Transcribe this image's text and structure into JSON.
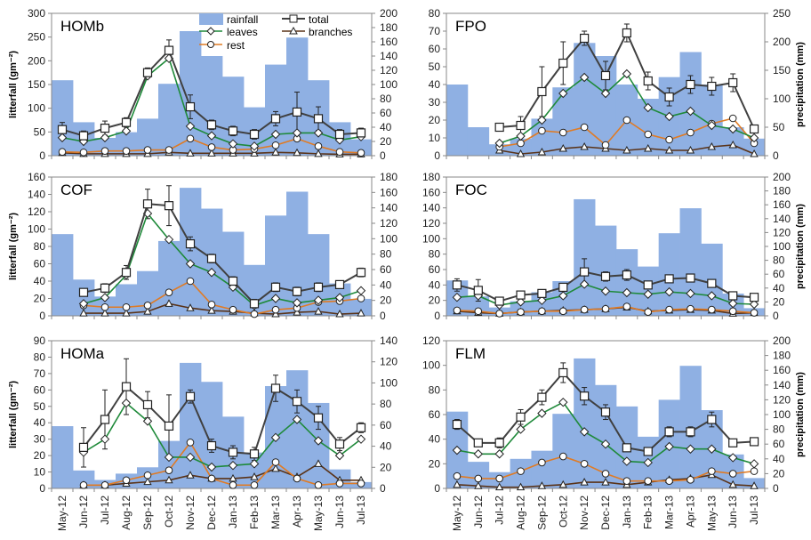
{
  "months": [
    "May-12",
    "Jun-12",
    "Jul-12",
    "Aug-12",
    "Sep-12",
    "Oct-12",
    "Nov-12",
    "Dec-12",
    "Jan-13",
    "Feb-13",
    "Mar-13",
    "Apr-13",
    "May-13",
    "Jun-13",
    "Jul-13"
  ],
  "labels": {
    "left_axis": "litterfall (gm⁻²)",
    "right_axis": "precipitation (mm)"
  },
  "legend": {
    "rainfall": "rainfall",
    "total": "total",
    "leaves": "leaves",
    "branches": "branches",
    "rest": "rest"
  },
  "colors": {
    "rainfall": "#8fb0e3",
    "total": "#404040",
    "leaves": "#1f8a3a",
    "rest": "#e07b24",
    "branches": "#5a3318"
  },
  "chart_data": [
    {
      "type": "bar+line",
      "title": "HOMb",
      "ylim": [
        0,
        300
      ],
      "yticks": [
        0,
        50,
        100,
        150,
        200,
        250,
        300
      ],
      "y2lim": [
        0,
        200
      ],
      "y2ticks": [
        0,
        20,
        40,
        60,
        80,
        100,
        120,
        140,
        160,
        180,
        200
      ],
      "show_ylabel": true,
      "show_y2label": false,
      "show_xlabels": false,
      "legend": true,
      "rainfall": [
        106,
        47,
        25,
        33,
        52,
        101,
        175,
        140,
        111,
        68,
        128,
        166,
        106,
        47,
        23
      ],
      "total": [
        55,
        42,
        58,
        70,
        175,
        222,
        103,
        65,
        52,
        45,
        78,
        92,
        78,
        45,
        48
      ],
      "total_err": [
        15,
        10,
        15,
        10,
        10,
        22,
        25,
        10,
        10,
        10,
        15,
        42,
        25,
        10,
        10
      ],
      "leaves": [
        38,
        30,
        38,
        52,
        168,
        205,
        62,
        42,
        25,
        20,
        45,
        48,
        48,
        33,
        40
      ],
      "rest": [
        8,
        7,
        10,
        10,
        12,
        12,
        36,
        18,
        12,
        14,
        22,
        36,
        20,
        8,
        6
      ],
      "branches": [
        6,
        4,
        4,
        4,
        4,
        7,
        5,
        5,
        5,
        5,
        7,
        6,
        4,
        3,
        3
      ]
    },
    {
      "type": "bar+line",
      "title": "FPO",
      "ylim": [
        0,
        80
      ],
      "yticks": [
        0,
        10,
        20,
        30,
        40,
        50,
        60,
        70,
        80
      ],
      "y2lim": [
        0,
        250
      ],
      "y2ticks": [
        0,
        50,
        100,
        150,
        200,
        250
      ],
      "show_ylabel": false,
      "show_y2label": true,
      "show_xlabels": false,
      "legend": false,
      "rainfall": [
        125,
        50,
        20,
        30,
        65,
        120,
        198,
        175,
        125,
        100,
        138,
        182,
        125,
        50,
        30
      ],
      "total": [
        16,
        17,
        36,
        52,
        66,
        45,
        69,
        42,
        33,
        40,
        39,
        41,
        15
      ],
      "total_err": [
        2,
        5,
        14,
        12,
        4,
        8,
        5,
        5,
        5,
        5,
        5,
        5,
        2
      ],
      "leaves": [
        7,
        11,
        20,
        35,
        44,
        35,
        46,
        27,
        22,
        25,
        17,
        15,
        10
      ],
      "rest": [
        5,
        7,
        14,
        13,
        16,
        6,
        20,
        12,
        9,
        13,
        18,
        21,
        7
      ],
      "branches": [
        3,
        1,
        2,
        4,
        5,
        4,
        3,
        4,
        3,
        3,
        5,
        6,
        1
      ]
    },
    {
      "type": "bar+line",
      "title": "COF",
      "ylim": [
        0,
        160
      ],
      "yticks": [
        0,
        20,
        40,
        60,
        80,
        100,
        120,
        140,
        160
      ],
      "y2lim": [
        0,
        180
      ],
      "y2ticks": [
        0,
        20,
        40,
        60,
        80,
        100,
        120,
        140,
        160,
        180
      ],
      "show_ylabel": true,
      "show_y2label": false,
      "show_xlabels": false,
      "legend": false,
      "rainfall": [
        106,
        47,
        25,
        41,
        58,
        97,
        166,
        139,
        109,
        66,
        130,
        161,
        106,
        42,
        22
      ],
      "total": [
        27,
        32,
        50,
        129,
        127,
        83,
        66,
        40,
        14,
        33,
        28,
        33,
        36,
        50
      ],
      "total_err": [
        3,
        5,
        8,
        17,
        23,
        8,
        5,
        5,
        5,
        5,
        5,
        5,
        3,
        5
      ],
      "leaves": [
        14,
        21,
        47,
        118,
        88,
        60,
        50,
        33,
        12,
        20,
        15,
        18,
        21,
        29
      ],
      "rest": [
        12,
        10,
        10,
        12,
        27,
        40,
        13,
        7,
        2,
        7,
        9,
        16,
        17,
        20
      ],
      "branches": [
        3,
        3,
        3,
        5,
        14,
        9,
        6,
        5,
        3,
        2,
        4,
        5,
        2,
        3
      ]
    },
    {
      "type": "bar+line",
      "title": "FOC",
      "ylim": [
        0,
        180
      ],
      "yticks": [
        0,
        20,
        40,
        60,
        80,
        100,
        120,
        140,
        160,
        180
      ],
      "y2lim": [
        0,
        200
      ],
      "y2ticks": [
        0,
        20,
        40,
        60,
        80,
        100,
        120,
        140,
        160,
        180,
        200
      ],
      "show_ylabel": false,
      "show_y2label": true,
      "show_xlabels": false,
      "legend": false,
      "rainfall": [
        51,
        28,
        12,
        21,
        34,
        50,
        168,
        130,
        96,
        71,
        119,
        155,
        104,
        32,
        11
      ],
      "total": [
        40,
        33,
        19,
        27,
        29,
        37,
        57,
        51,
        53,
        40,
        48,
        49,
        42,
        26,
        24
      ],
      "total_err": [
        8,
        14,
        3,
        3,
        3,
        3,
        17,
        6,
        7,
        5,
        3,
        4,
        4,
        4,
        3
      ],
      "leaves": [
        24,
        26,
        14,
        18,
        20,
        26,
        41,
        32,
        30,
        28,
        31,
        29,
        26,
        16,
        15
      ],
      "rest": [
        7,
        6,
        3,
        5,
        6,
        6,
        8,
        9,
        12,
        5,
        8,
        9,
        8,
        6,
        4
      ],
      "branches": [
        6,
        4,
        3,
        5,
        6,
        7,
        8,
        9,
        11,
        6,
        7,
        8,
        7,
        3,
        4
      ]
    },
    {
      "type": "bar+line",
      "title": "HOMa",
      "ylim": [
        0,
        90
      ],
      "yticks": [
        0,
        10,
        20,
        30,
        40,
        50,
        60,
        70,
        80,
        90
      ],
      "y2lim": [
        0,
        140
      ],
      "y2ticks": [
        0,
        20,
        40,
        60,
        80,
        100,
        120,
        140
      ],
      "show_ylabel": true,
      "show_y2label": false,
      "show_xlabels": true,
      "legend": false,
      "rainfall": [
        59,
        17,
        8,
        14,
        20,
        45,
        119,
        101,
        68,
        34,
        97,
        112,
        81,
        18,
        6
      ],
      "total": [
        25,
        42,
        62,
        51,
        38,
        56,
        26,
        22,
        21,
        61,
        53,
        43,
        27,
        37
      ],
      "total_err": [
        12,
        18,
        17,
        8,
        19,
        4,
        4,
        4,
        4,
        8,
        7,
        7,
        4,
        3
      ],
      "leaves": [
        22,
        30,
        52,
        41,
        19,
        19,
        13,
        14,
        15,
        31,
        42,
        29,
        20,
        30
      ],
      "rest": [
        2,
        2,
        5,
        8,
        11,
        28,
        6,
        2,
        2,
        16,
        6,
        2,
        3,
        3
      ],
      "branches": [
        2,
        2,
        3,
        4,
        5,
        8,
        6,
        6,
        7,
        12,
        7,
        15,
        5,
        5
      ]
    },
    {
      "type": "bar+line",
      "title": "FLM",
      "ylim": [
        0,
        120
      ],
      "yticks": [
        0,
        20,
        40,
        60,
        80,
        100,
        120
      ],
      "y2lim": [
        0,
        200
      ],
      "y2ticks": [
        0,
        20,
        40,
        60,
        80,
        100,
        120,
        140,
        160,
        180,
        200
      ],
      "show_ylabel": false,
      "show_y2label": true,
      "show_xlabels": true,
      "legend": false,
      "rainfall": [
        104,
        36,
        22,
        40,
        51,
        101,
        176,
        140,
        111,
        70,
        120,
        166,
        106,
        46,
        14
      ],
      "total": [
        52,
        37,
        37,
        58,
        74,
        94,
        75,
        62,
        33,
        30,
        46,
        46,
        56,
        37,
        38
      ],
      "total_err": [
        4,
        3,
        4,
        6,
        6,
        8,
        7,
        6,
        3,
        3,
        4,
        4,
        6,
        3,
        3
      ],
      "leaves": [
        31,
        28,
        28,
        48,
        61,
        70,
        46,
        36,
        22,
        21,
        34,
        32,
        32,
        25,
        20
      ],
      "rest": [
        10,
        8,
        8,
        14,
        21,
        26,
        20,
        12,
        6,
        6,
        6,
        7,
        14,
        12,
        14
      ],
      "branches": [
        3,
        2,
        1,
        1,
        2,
        3,
        5,
        5,
        3,
        5,
        7,
        8,
        11,
        3,
        2
      ]
    }
  ]
}
